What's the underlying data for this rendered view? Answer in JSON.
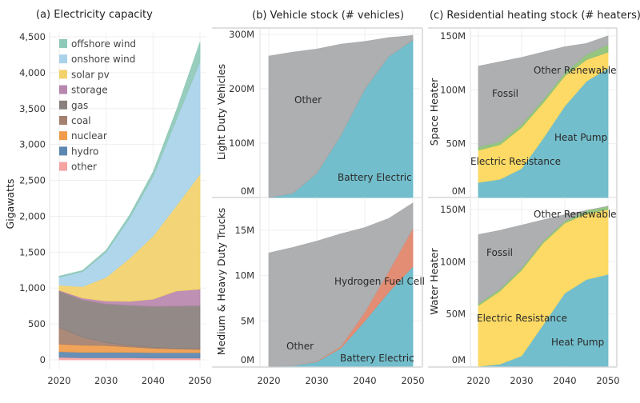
{
  "chart_data": [
    {
      "id": "a",
      "type": "area",
      "stacked": true,
      "title": "(a) Electricity capacity",
      "ylabel": "Gigawatts",
      "xlabel": "",
      "ylim": [
        0,
        4500
      ],
      "yticks": [
        "0",
        "500",
        "1,000",
        "1,500",
        "2,000",
        "2,500",
        "3,000",
        "3,500",
        "4,000",
        "4,500"
      ],
      "ytick_values": [
        0,
        500,
        1000,
        1500,
        2000,
        2500,
        3000,
        3500,
        4000,
        4500
      ],
      "xticks": [
        "2020",
        "2030",
        "2040",
        "2050"
      ],
      "x": [
        2020,
        2025,
        2030,
        2035,
        2040,
        2045,
        2050
      ],
      "legend": "top-left",
      "series": [
        {
          "name": "other",
          "color": "#f5a3a3",
          "values": [
            35,
            30,
            30,
            30,
            25,
            25,
            25
          ]
        },
        {
          "name": "hydro",
          "color": "#5b87b0",
          "values": [
            80,
            75,
            75,
            75,
            75,
            75,
            75
          ]
        },
        {
          "name": "nuclear",
          "color": "#f09c4a",
          "values": [
            105,
            100,
            95,
            75,
            60,
            50,
            45
          ]
        },
        {
          "name": "coal",
          "color": "#a5806e",
          "values": [
            230,
            110,
            40,
            20,
            15,
            10,
            10
          ]
        },
        {
          "name": "gas",
          "color": "#8a807d",
          "values": [
            510,
            520,
            540,
            560,
            570,
            590,
            600
          ]
        },
        {
          "name": "storage",
          "color": "#b887ad",
          "values": [
            10,
            25,
            40,
            55,
            100,
            210,
            230
          ]
        },
        {
          "name": "solar pv",
          "color": "#f2d16b",
          "values": [
            70,
            160,
            330,
            600,
            880,
            1190,
            1600
          ]
        },
        {
          "name": "onshore wind",
          "color": "#a9d3ea",
          "values": [
            110,
            210,
            350,
            560,
            830,
            1200,
            1570
          ]
        },
        {
          "name": "offshore wind",
          "color": "#8fc9b9",
          "values": [
            15,
            15,
            25,
            40,
            60,
            130,
            270
          ]
        }
      ]
    },
    {
      "id": "b1",
      "type": "area",
      "stacked": true,
      "title": "(b) Vehicle stock (# vehicles)",
      "ylabel": "Light Duty Vehicles",
      "ylim": [
        0,
        300
      ],
      "yticks": [
        "0M",
        "100M",
        "200M",
        "300M"
      ],
      "ytick_values": [
        0,
        100,
        200,
        300
      ],
      "x": [
        2020,
        2025,
        2030,
        2035,
        2040,
        2045,
        2050
      ],
      "series": [
        {
          "name": "Battery Electric",
          "color": "#6bbac9",
          "values": [
            0,
            8,
            45,
            115,
            200,
            260,
            290
          ]
        },
        {
          "name": "Hydrogen Fuel Cell",
          "color": "#e0876d",
          "values": [
            0,
            0.3,
            0.5,
            0.5,
            0.5,
            0.5,
            0.5
          ]
        },
        {
          "name": "Other",
          "color": "#a9abad",
          "values": [
            260,
            259,
            227.5,
            166.5,
            86.5,
            33.5,
            7.5
          ]
        }
      ]
    },
    {
      "id": "b2",
      "type": "area",
      "stacked": true,
      "ylabel": "Medium & Heavy Duty Trucks",
      "ylim": [
        0,
        18
      ],
      "yticks": [
        "0M",
        "5M",
        "10M",
        "15M"
      ],
      "ytick_values": [
        0,
        5,
        10,
        15
      ],
      "xticks": [
        "2020",
        "2030",
        "2040",
        "2050"
      ],
      "x": [
        2020,
        2025,
        2030,
        2035,
        2040,
        2045,
        2050
      ],
      "series": [
        {
          "name": "Battery Electric",
          "color": "#6bbac9",
          "values": [
            0,
            0.05,
            0.5,
            2.0,
            5.0,
            8.2,
            11
          ]
        },
        {
          "name": "Hydrogen Fuel Cell",
          "color": "#e0876d",
          "values": [
            0,
            0,
            0.05,
            0.2,
            1.0,
            2.3,
            4.2
          ]
        },
        {
          "name": "Other",
          "color": "#a9abad",
          "values": [
            12.5,
            13.05,
            13.25,
            12.4,
            9.3,
            5.8,
            2.8
          ]
        }
      ]
    },
    {
      "id": "c1",
      "type": "area",
      "stacked": true,
      "title": "(c) Residential heating stock (# heaters)",
      "ylabel": "Space Heater",
      "ylim": [
        0,
        150
      ],
      "yticks": [
        "0M",
        "50M",
        "100M",
        "150M"
      ],
      "ytick_values": [
        0,
        50,
        100,
        150
      ],
      "x": [
        2020,
        2025,
        2030,
        2035,
        2040,
        2045,
        2050
      ],
      "series": [
        {
          "name": "Heat Pump",
          "color": "#6bbac9",
          "values": [
            14,
            17,
            27,
            55,
            85,
            108,
            120
          ]
        },
        {
          "name": "Electric Resistance",
          "color": "#fdd85d",
          "values": [
            30,
            32,
            38,
            33,
            28,
            20,
            15
          ]
        },
        {
          "name": "Other Renewable",
          "color": "#8fc27a",
          "values": [
            3,
            3,
            3,
            3,
            3,
            5,
            7
          ]
        },
        {
          "name": "Fossil",
          "color": "#a9abad",
          "values": [
            75,
            74,
            62,
            44,
            24,
            10,
            8
          ]
        }
      ]
    },
    {
      "id": "c2",
      "type": "area",
      "stacked": true,
      "ylabel": "Water Heater",
      "ylim": [
        0,
        155
      ],
      "yticks": [
        "0M",
        "50M",
        "100M",
        "150M"
      ],
      "ytick_values": [
        0,
        50,
        100,
        150
      ],
      "xticks": [
        "2020",
        "2030",
        "2040",
        "2050"
      ],
      "x": [
        2020,
        2025,
        2030,
        2035,
        2040,
        2045,
        2050
      ],
      "series": [
        {
          "name": "Heat Pump",
          "color": "#6bbac9",
          "values": [
            0,
            2,
            10,
            40,
            70,
            83,
            88
          ]
        },
        {
          "name": "Electric Resistance",
          "color": "#fdd85d",
          "values": [
            58,
            70,
            82,
            78,
            67,
            63,
            62
          ]
        },
        {
          "name": "Other Renewable",
          "color": "#8fc27a",
          "values": [
            2,
            2,
            2,
            2,
            2,
            3,
            3
          ]
        },
        {
          "name": "Fossil",
          "color": "#a9abad",
          "values": [
            66,
            56,
            41,
            20,
            6,
            0,
            0
          ]
        }
      ]
    }
  ]
}
